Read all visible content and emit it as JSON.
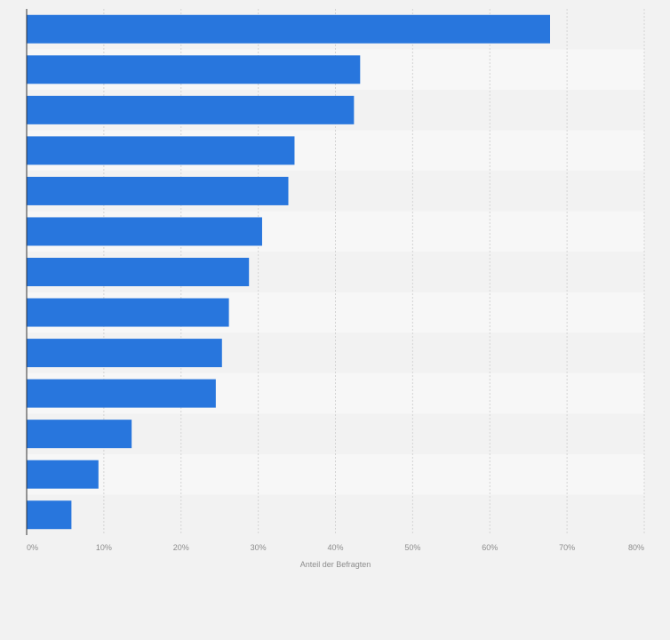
{
  "chart_data": {
    "type": "bar",
    "orientation": "horizontal",
    "categories": [
      "",
      "",
      "",
      "",
      "",
      "",
      "",
      "",
      "",
      "",
      "",
      "",
      ""
    ],
    "values": [
      67.8,
      43.2,
      42.4,
      34.7,
      33.9,
      30.5,
      28.8,
      26.2,
      25.3,
      24.5,
      13.6,
      9.3,
      5.8
    ],
    "title": "",
    "xlabel": "Anteil der Befragten",
    "ylabel": "",
    "xlim": [
      0,
      80
    ],
    "ticks": [
      0,
      10,
      20,
      30,
      40,
      50,
      60,
      70,
      80
    ],
    "tick_labels": [
      "0%",
      "10%",
      "20%",
      "30%",
      "40%",
      "50%",
      "60%",
      "70%",
      "80%"
    ],
    "grid": true,
    "bar_color": "#2876dd",
    "band_colors": [
      "#f2f2f2",
      "#f7f7f7"
    ]
  }
}
